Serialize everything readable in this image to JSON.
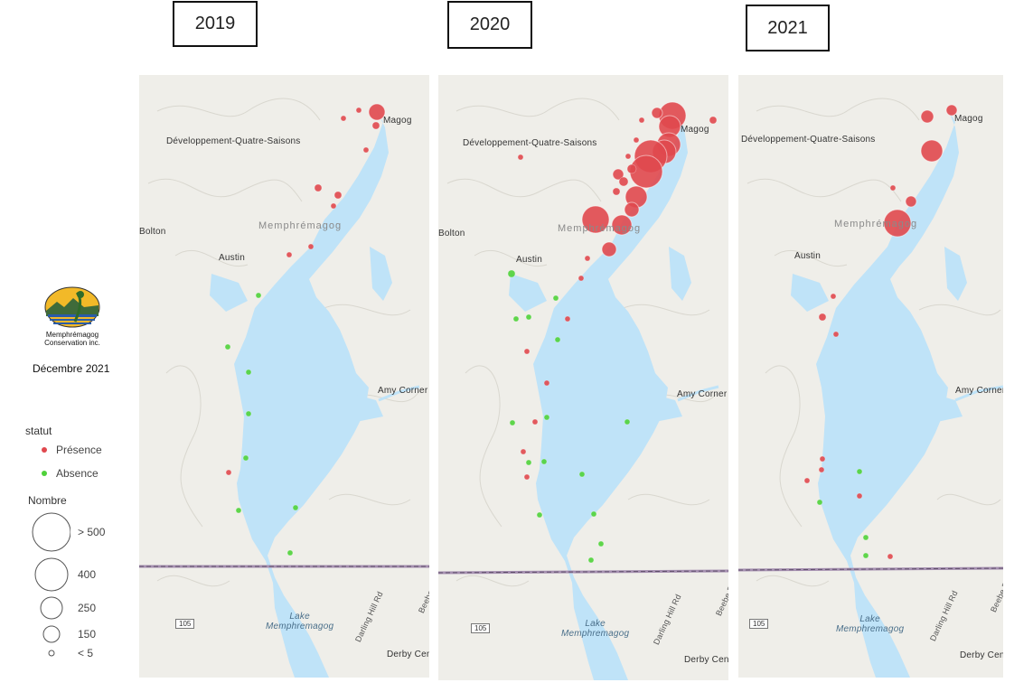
{
  "years": [
    "2019",
    "2020",
    "2021"
  ],
  "map_labels": {
    "place_top": "Magog",
    "place_dqs": "Développement-Quatre-Saisons",
    "place_memph": "Memphrémagog",
    "place_bolton": "Bolton",
    "place_austin": "Austin",
    "place_amy": "Amy Corner",
    "place_derby": "Derby Cen",
    "lake_line1": "Lake",
    "lake_line2": "Memphremagog",
    "road_darling": "Darling Hill Rd",
    "road_beebe": "Beebe Rd",
    "shield_105": "105"
  },
  "logo": {
    "line1": "Memphrémagog",
    "line2": "Conservation inc."
  },
  "date": "Décembre 2021",
  "legend": {
    "statut_title": "statut",
    "presence": "Présence",
    "absence": "Absence",
    "nombre_title": "Nombre",
    "sizes": [
      "> 500",
      "400",
      "250",
      "150",
      "< 5"
    ]
  },
  "colors": {
    "presence": "#e0484e",
    "absence": "#4fd13a",
    "water": "#bfe3f8",
    "land": "#efeee9",
    "border_line": "#a58fb0"
  },
  "map_data": {
    "2019": {
      "presence": [
        [
          417,
          124,
          9
        ],
        [
          380,
          131,
          3
        ],
        [
          397,
          122,
          3
        ],
        [
          416,
          139,
          4
        ],
        [
          405,
          166,
          3
        ],
        [
          352,
          208,
          4
        ],
        [
          374,
          216,
          4
        ],
        [
          369,
          228,
          3
        ],
        [
          344,
          273,
          3
        ],
        [
          320,
          282,
          3
        ],
        [
          253,
          523,
          3
        ]
      ],
      "absence": [
        [
          286,
          327,
          3
        ],
        [
          252,
          384,
          3
        ],
        [
          275,
          412,
          3
        ],
        [
          275,
          458,
          3
        ],
        [
          272,
          507,
          3
        ],
        [
          264,
          565,
          3
        ],
        [
          327,
          562,
          3
        ],
        [
          321,
          612,
          3
        ]
      ]
    },
    "2020": {
      "presence": [
        [
          744,
          128,
          15
        ],
        [
          727,
          125,
          6
        ],
        [
          789,
          133,
          4
        ],
        [
          710,
          133,
          3
        ],
        [
          741,
          140,
          12
        ],
        [
          740,
          160,
          13
        ],
        [
          735,
          168,
          13
        ],
        [
          720,
          173,
          18
        ],
        [
          715,
          190,
          18
        ],
        [
          699,
          187,
          5
        ],
        [
          704,
          155,
          3
        ],
        [
          695,
          173,
          3
        ],
        [
          684,
          193,
          6
        ],
        [
          690,
          201,
          5
        ],
        [
          682,
          212,
          4
        ],
        [
          704,
          218,
          12
        ],
        [
          699,
          232,
          8
        ],
        [
          688,
          249,
          11
        ],
        [
          659,
          243,
          15
        ],
        [
          674,
          276,
          8
        ],
        [
          650,
          286,
          3
        ],
        [
          643,
          308,
          3
        ],
        [
          628,
          353,
          3
        ],
        [
          583,
          389,
          3
        ],
        [
          605,
          424,
          3
        ],
        [
          592,
          467,
          3
        ],
        [
          579,
          500,
          3
        ],
        [
          583,
          528,
          3
        ],
        [
          576,
          174,
          3
        ]
      ],
      "absence": [
        [
          566,
          303,
          4
        ],
        [
          615,
          330,
          3
        ],
        [
          585,
          351,
          3
        ],
        [
          571,
          353,
          3
        ],
        [
          617,
          376,
          3
        ],
        [
          605,
          462,
          3
        ],
        [
          567,
          468,
          3
        ],
        [
          694,
          467,
          3
        ],
        [
          585,
          512,
          3
        ],
        [
          602,
          511,
          3
        ],
        [
          644,
          525,
          3
        ],
        [
          597,
          570,
          3
        ],
        [
          657,
          569,
          3
        ],
        [
          665,
          602,
          3
        ],
        [
          654,
          620,
          3
        ]
      ]
    },
    "2021": {
      "presence": [
        [
          1053,
          122,
          6
        ],
        [
          1026,
          129,
          7
        ],
        [
          1031,
          167,
          12
        ],
        [
          993,
          247,
          15
        ],
        [
          1008,
          223,
          6
        ],
        [
          988,
          208,
          3
        ],
        [
          922,
          328,
          3
        ],
        [
          910,
          351,
          4
        ],
        [
          925,
          370,
          3
        ],
        [
          910,
          508,
          3
        ],
        [
          909,
          520,
          3
        ],
        [
          893,
          532,
          3
        ],
        [
          951,
          549,
          3
        ],
        [
          985,
          616,
          3
        ]
      ],
      "absence": [
        [
          951,
          522,
          3
        ],
        [
          907,
          556,
          3
        ],
        [
          958,
          595,
          3
        ],
        [
          958,
          615,
          3
        ]
      ]
    }
  }
}
